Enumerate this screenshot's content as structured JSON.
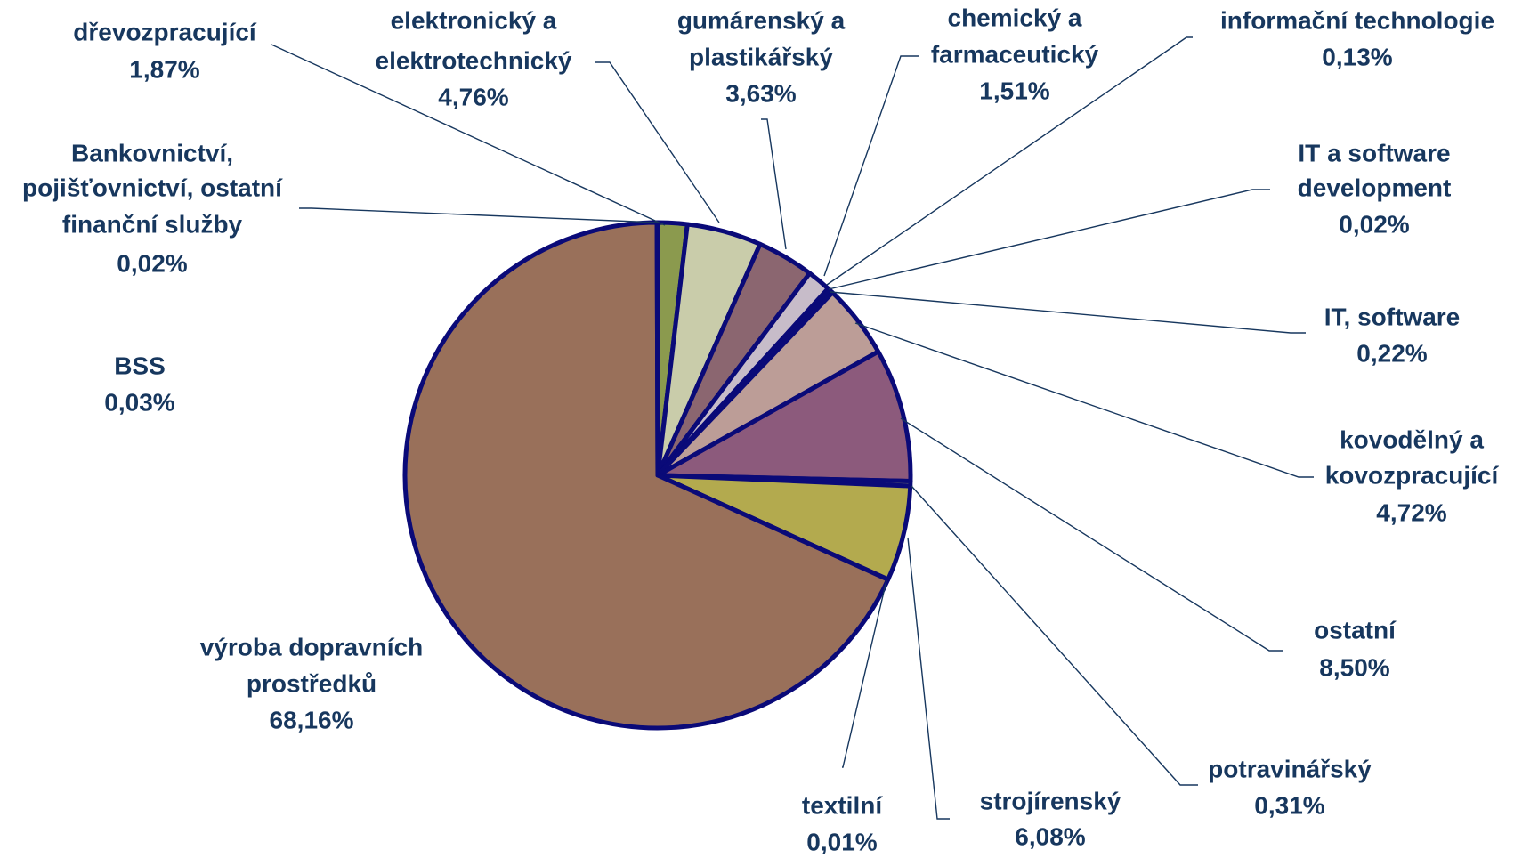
{
  "chart_data": {
    "type": "pie",
    "start": "12 o'clock",
    "direction": "clockwise",
    "legend": "none",
    "slices": [
      {
        "name": "dřevozpracující",
        "value": 1.87,
        "label": "1,87%",
        "color": "#8b9a4e"
      },
      {
        "name": "elektronický a elektrotechnický",
        "value": 4.76,
        "label": "4,76%",
        "color": "#c9ccaa"
      },
      {
        "name": "gumárenský a plastikářský",
        "value": 3.63,
        "label": "3,63%",
        "color": "#8b6670"
      },
      {
        "name": "chemický a farmaceutický",
        "value": 1.51,
        "label": "1,51%",
        "color": "#c7bcc9"
      },
      {
        "name": "informační technologie",
        "value": 0.13,
        "label": "0,13%",
        "color": "#8a7a99"
      },
      {
        "name": "IT a software development",
        "value": 0.02,
        "label": "0,02%",
        "color": "#6a6a8c"
      },
      {
        "name": "IT, software",
        "value": 0.22,
        "label": "0,22%",
        "color": "#4a5a8a"
      },
      {
        "name": "kovodělný a kovozpracující",
        "value": 4.72,
        "label": "4,72%",
        "color": "#bc9d97"
      },
      {
        "name": "ostatní",
        "value": 8.5,
        "label": "8,50%",
        "color": "#8c5a7c"
      },
      {
        "name": "potravinářský",
        "value": 0.31,
        "label": "0,31%",
        "color": "#7a7a6a"
      },
      {
        "name": "strojírenský",
        "value": 6.08,
        "label": "6,08%",
        "color": "#b3aa4e"
      },
      {
        "name": "textilní",
        "value": 0.01,
        "label": "0,01%",
        "color": "#9a8a6a"
      },
      {
        "name": "výroba dopravních prostředků",
        "value": 68.16,
        "label": "68,16%",
        "color": "#99705a"
      },
      {
        "name": "BSS",
        "value": 0.03,
        "label": "0,03%",
        "color": "#8a8a8a"
      },
      {
        "name": "Bankovnictví, pojišťovnictví, ostatní finanční služby",
        "value": 0.02,
        "label": "0,02%",
        "color": "#6a8a6a"
      }
    ]
  }
}
